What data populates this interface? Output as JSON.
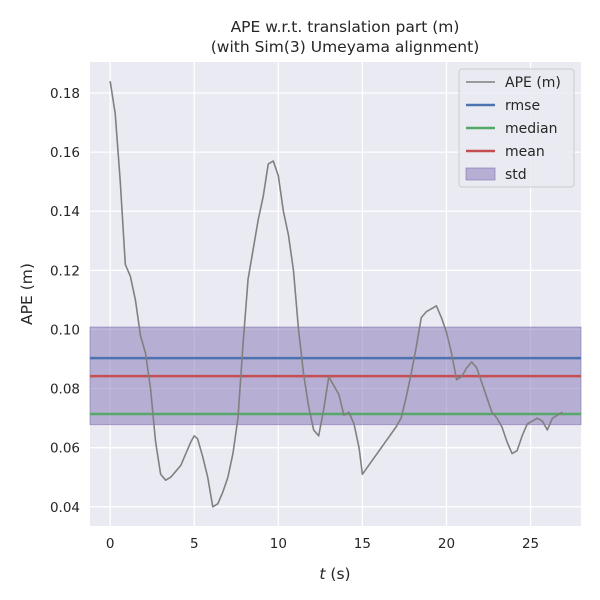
{
  "chart_data": {
    "type": "line",
    "title": "APE w.r.t. translation part (m)",
    "subtitle": "(with Sim(3) Umeyama alignment)",
    "xlabel_italic": "t",
    "xlabel_unit": " (s)",
    "ylabel": "APE (m)",
    "xlim": [
      -1.2,
      28.0
    ],
    "ylim": [
      0.0335,
      0.1905
    ],
    "xticks": [
      0,
      5,
      10,
      15,
      20,
      25
    ],
    "yticks": [
      0.04,
      0.06,
      0.08,
      0.1,
      0.12,
      0.14,
      0.16,
      0.18
    ],
    "ytick_labels": [
      "0.04",
      "0.06",
      "0.08",
      "0.10",
      "0.12",
      "0.14",
      "0.16",
      "0.18"
    ],
    "grid": true,
    "background": "#eaeaf2",
    "legend_position": "top-right",
    "series": [
      {
        "name": "APE (m)",
        "color": "#808080",
        "x": [
          0.0,
          0.3,
          0.6,
          0.9,
          1.2,
          1.5,
          1.8,
          2.1,
          2.4,
          2.7,
          3.0,
          3.3,
          3.6,
          3.9,
          4.2,
          4.5,
          4.8,
          5.0,
          5.2,
          5.5,
          5.8,
          6.1,
          6.4,
          6.7,
          7.0,
          7.3,
          7.6,
          7.9,
          8.2,
          8.5,
          8.8,
          9.1,
          9.4,
          9.7,
          10.0,
          10.3,
          10.6,
          10.9,
          11.2,
          11.5,
          11.8,
          12.1,
          12.4,
          12.7,
          13.0,
          13.3,
          13.6,
          13.9,
          14.2,
          14.5,
          14.8,
          15.0,
          15.5,
          16.0,
          16.5,
          17.0,
          17.3,
          17.6,
          17.9,
          18.2,
          18.5,
          18.8,
          19.1,
          19.4,
          19.7,
          20.0,
          20.3,
          20.6,
          20.9,
          21.2,
          21.5,
          21.8,
          22.1,
          22.4,
          22.7,
          23.0,
          23.3,
          23.6,
          23.9,
          24.2,
          24.5,
          24.8,
          25.1,
          25.4,
          25.7,
          26.0,
          26.3,
          26.6,
          26.9
        ],
        "values": [
          0.184,
          0.173,
          0.15,
          0.122,
          0.118,
          0.11,
          0.098,
          0.092,
          0.08,
          0.062,
          0.051,
          0.049,
          0.05,
          0.052,
          0.054,
          0.058,
          0.062,
          0.064,
          0.063,
          0.057,
          0.05,
          0.04,
          0.041,
          0.045,
          0.05,
          0.058,
          0.07,
          0.095,
          0.117,
          0.127,
          0.137,
          0.145,
          0.156,
          0.157,
          0.152,
          0.14,
          0.132,
          0.12,
          0.1,
          0.085,
          0.074,
          0.066,
          0.064,
          0.073,
          0.084,
          0.081,
          0.078,
          0.071,
          0.072,
          0.068,
          0.06,
          0.051,
          0.055,
          0.059,
          0.063,
          0.067,
          0.07,
          0.077,
          0.085,
          0.094,
          0.104,
          0.106,
          0.107,
          0.108,
          0.104,
          0.099,
          0.092,
          0.083,
          0.084,
          0.087,
          0.089,
          0.087,
          0.082,
          0.077,
          0.072,
          0.07,
          0.067,
          0.062,
          0.058,
          0.059,
          0.064,
          0.068,
          0.069,
          0.07,
          0.069,
          0.066,
          0.07,
          0.071,
          0.072
        ]
      },
      {
        "name": "rmse",
        "color": "#4c72b0",
        "constant": 0.0903
      },
      {
        "name": "median",
        "color": "#55a868",
        "constant": 0.0714
      },
      {
        "name": "mean",
        "color": "#c44e52",
        "constant": 0.0842
      }
    ],
    "std_band": {
      "name": "std",
      "color": "#8172b3",
      "low": 0.0678,
      "high": 0.1008
    }
  }
}
